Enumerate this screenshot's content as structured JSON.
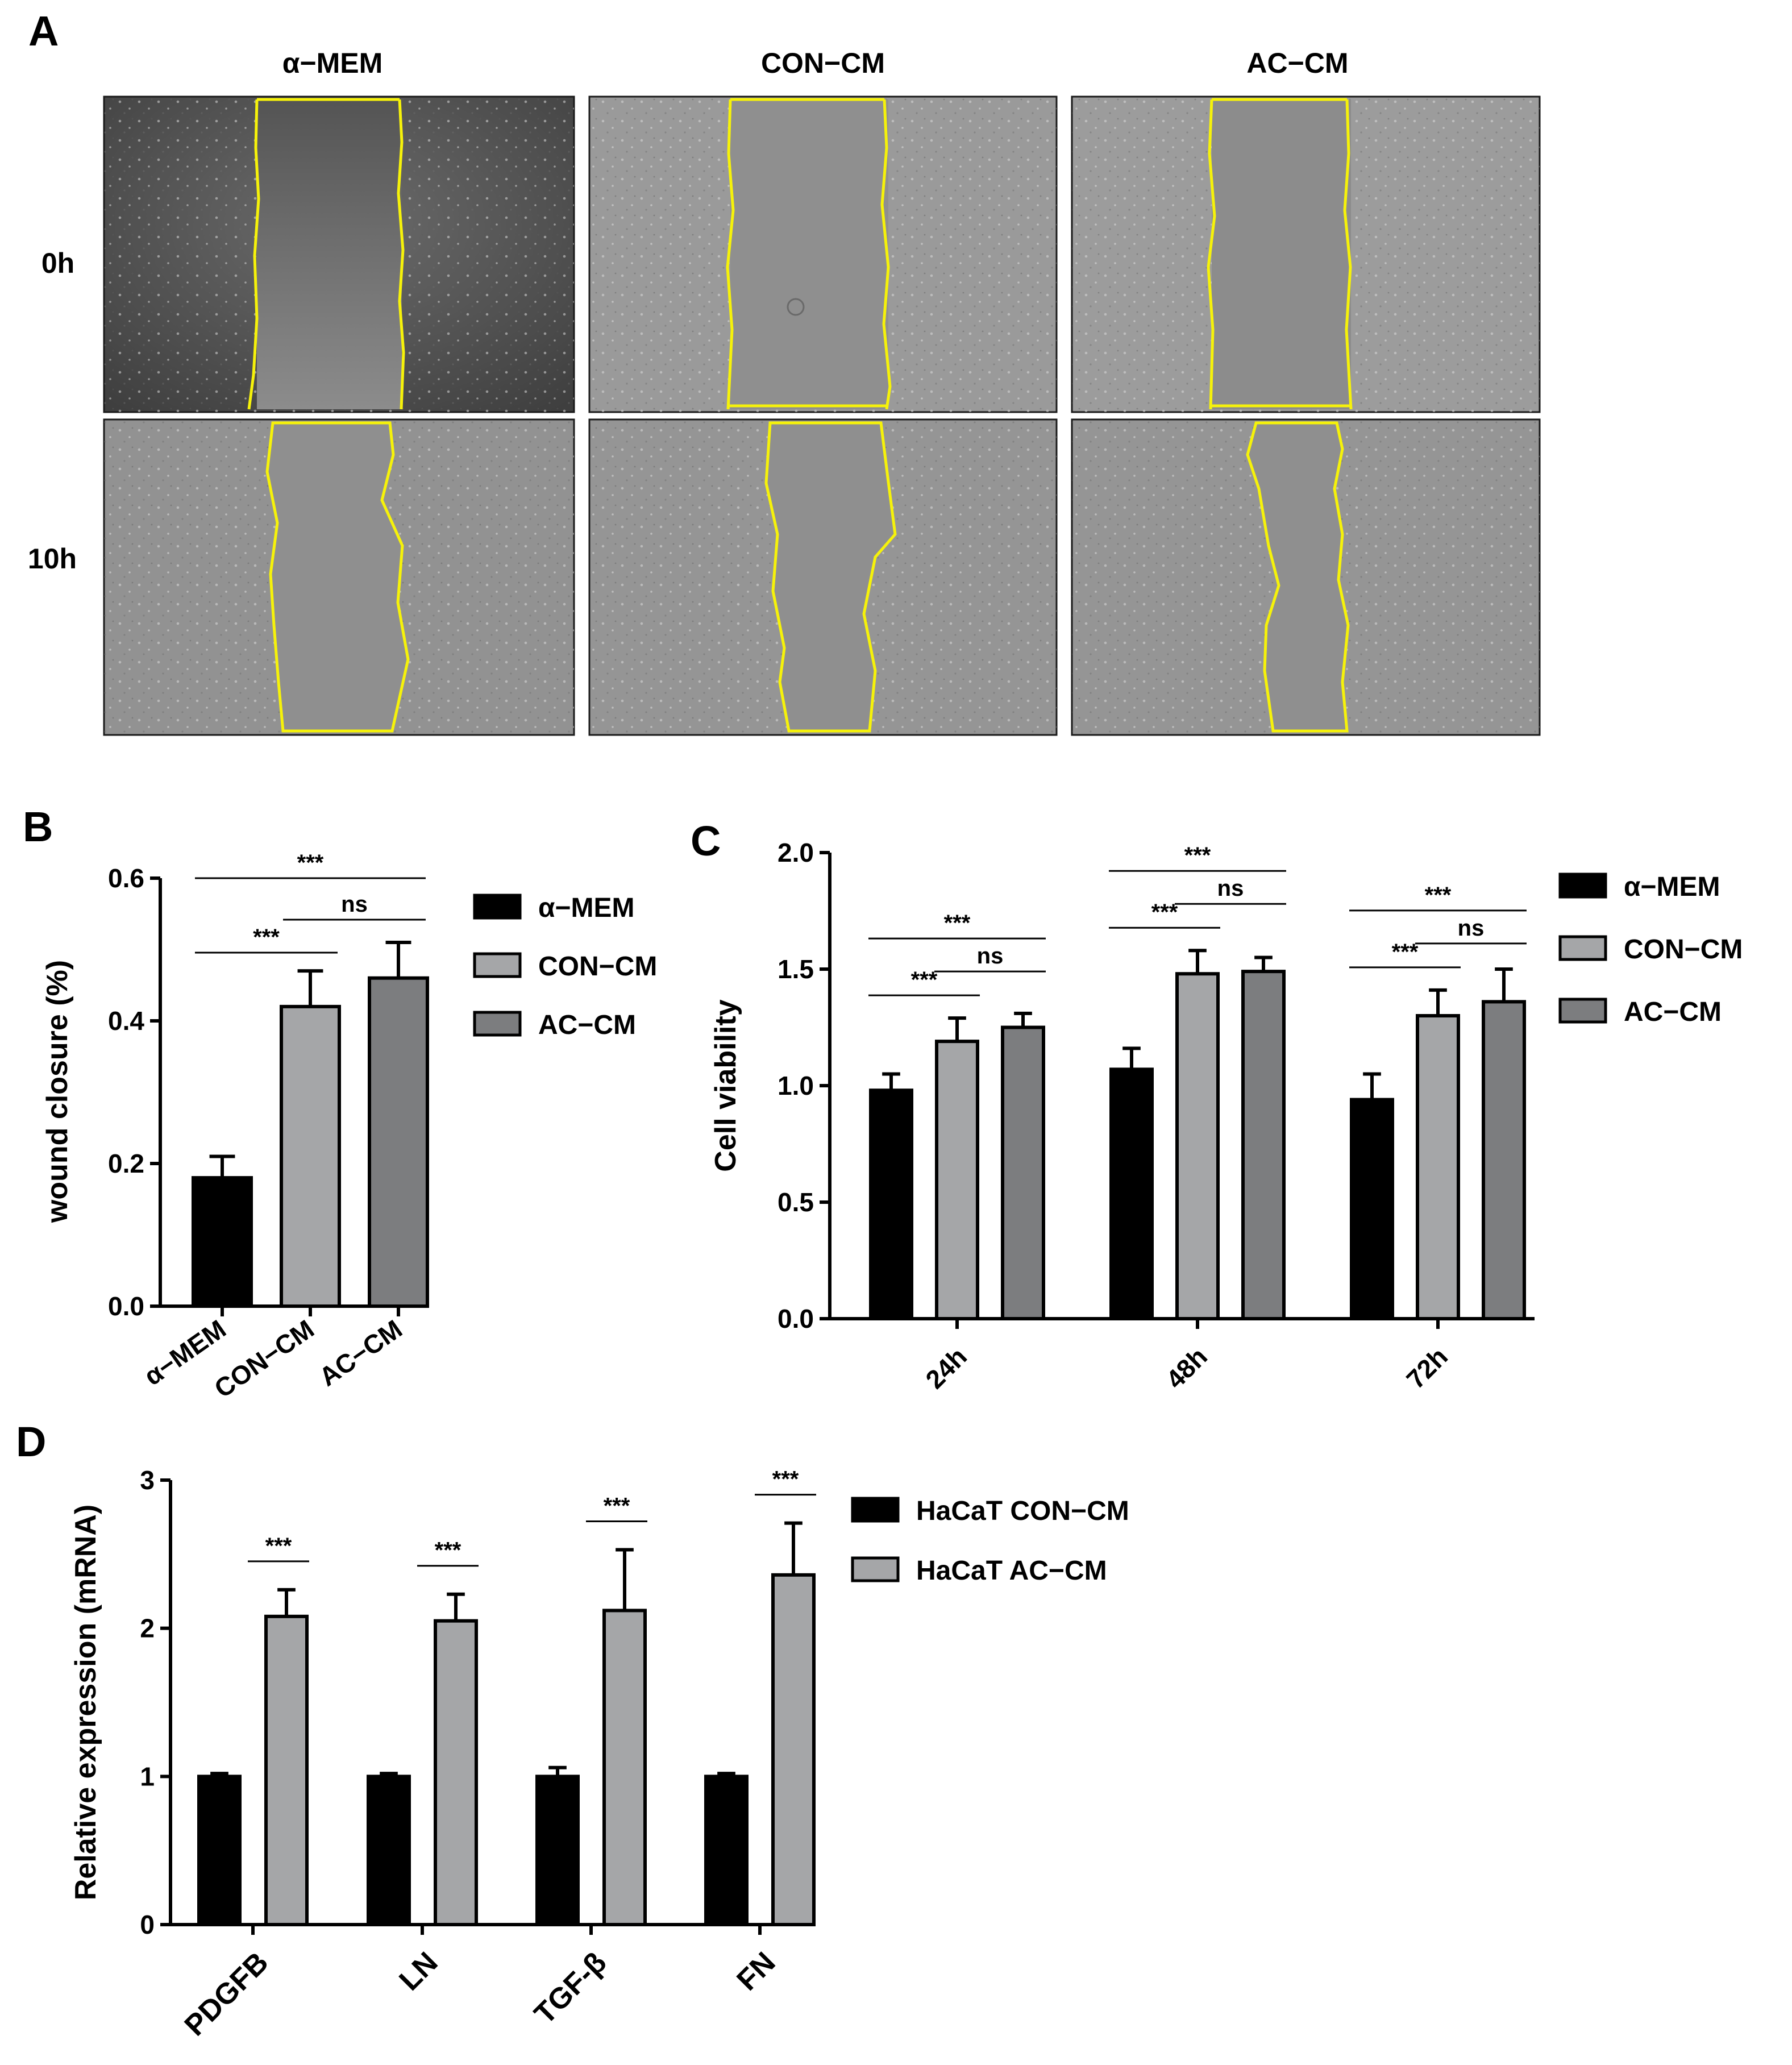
{
  "colors": {
    "alpha_mem": "#000000",
    "con_cm": "#a5a6a8",
    "ac_cm": "#7c7d7f",
    "wound_outline": "#f6f20a",
    "micrograph_bg": "#8e8e8e"
  },
  "panel_a": {
    "label": "A",
    "columns": [
      "α−MEM",
      "CON−CM",
      "AC−CM"
    ],
    "rows": [
      "0h",
      "10h"
    ]
  },
  "chart_data": [
    {
      "panel": "B",
      "type": "bar",
      "categories": [
        "α−MEM",
        "CON−CM",
        "AC−CM"
      ],
      "values": [
        0.18,
        0.42,
        0.46
      ],
      "errors": [
        0.03,
        0.05,
        0.05
      ],
      "colors": [
        "#000000",
        "#a5a6a8",
        "#7c7d7f"
      ],
      "ylabel": "wound closure (%)",
      "ylim": [
        0,
        0.6
      ],
      "yticks": [
        "0.0",
        "0.2",
        "0.4",
        "0.6"
      ],
      "legend": [
        "α−MEM",
        "CON−CM",
        "AC−CM"
      ],
      "legend_position": "right",
      "significance": [
        {
          "from": 1,
          "to": 2,
          "label": "***"
        },
        {
          "from": 2,
          "to": 3,
          "label": "ns"
        },
        {
          "from": 1,
          "to": 3,
          "label": "***"
        }
      ]
    },
    {
      "panel": "C",
      "type": "bar",
      "categories": [
        "24h",
        "48h",
        "72h"
      ],
      "series": [
        {
          "name": "α−MEM",
          "values": [
            0.98,
            1.07,
            0.94
          ],
          "errors": [
            0.07,
            0.09,
            0.11
          ],
          "color": "#000000"
        },
        {
          "name": "CON−CM",
          "values": [
            1.19,
            1.48,
            1.3
          ],
          "errors": [
            0.1,
            0.1,
            0.11
          ],
          "color": "#a5a6a8"
        },
        {
          "name": "AC−CM",
          "values": [
            1.25,
            1.49,
            1.36
          ],
          "errors": [
            0.06,
            0.06,
            0.14
          ],
          "color": "#7c7d7f"
        }
      ],
      "ylabel": "Cell viability",
      "ylim": [
        0,
        2.0
      ],
      "yticks": [
        "0.0",
        "0.5",
        "1.0",
        "1.5",
        "2.0"
      ],
      "legend_position": "right",
      "significance": [
        {
          "group": 0,
          "from": 1,
          "to": 2,
          "label": "***"
        },
        {
          "group": 0,
          "from": 2,
          "to": 3,
          "label": "ns"
        },
        {
          "group": 0,
          "from": 1,
          "to": 3,
          "label": "***"
        },
        {
          "group": 1,
          "from": 1,
          "to": 2,
          "label": "***"
        },
        {
          "group": 1,
          "from": 2,
          "to": 3,
          "label": "ns"
        },
        {
          "group": 1,
          "from": 1,
          "to": 3,
          "label": "***"
        },
        {
          "group": 2,
          "from": 1,
          "to": 2,
          "label": "***"
        },
        {
          "group": 2,
          "from": 2,
          "to": 3,
          "label": "ns"
        },
        {
          "group": 2,
          "from": 1,
          "to": 3,
          "label": "***"
        }
      ]
    },
    {
      "panel": "D",
      "type": "bar",
      "categories": [
        "PDGFB",
        "LN",
        "TGF-β",
        "FN"
      ],
      "series": [
        {
          "name": "HaCaT CON−CM",
          "values": [
            1.0,
            1.0,
            1.0,
            1.0
          ],
          "errors": [
            0.02,
            0.02,
            0.06,
            0.02
          ],
          "color": "#000000"
        },
        {
          "name": "HaCaT AC−CM",
          "values": [
            2.08,
            2.05,
            2.12,
            2.36
          ],
          "errors": [
            0.18,
            0.18,
            0.41,
            0.35
          ],
          "color": "#a5a6a8"
        }
      ],
      "ylabel": "Relative expression (mRNA)",
      "ylim": [
        0,
        3
      ],
      "yticks": [
        "0",
        "1",
        "2",
        "3"
      ],
      "legend_position": "top-right",
      "significance": [
        {
          "group": 0,
          "label": "***"
        },
        {
          "group": 1,
          "label": "***"
        },
        {
          "group": 2,
          "label": "***"
        },
        {
          "group": 3,
          "label": "***"
        }
      ]
    }
  ]
}
